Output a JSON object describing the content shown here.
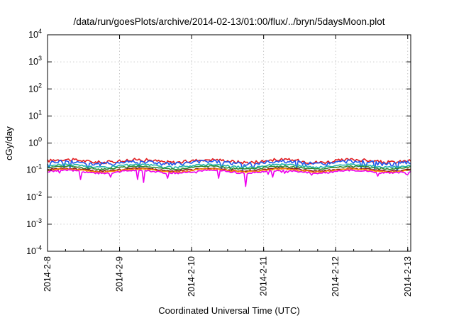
{
  "chart_data": {
    "type": "line",
    "title": "/data/run/goesPlots/archive/2014-02-13/01:00/flux/../bryn/5daysMoon.plot",
    "xlabel": "Coordinated Universal Time (UTC)",
    "ylabel": "cGy/day",
    "y_scale": "log",
    "ylim": [
      0.0001,
      10000
    ],
    "y_ticks": [
      {
        "base": "10",
        "exp": "-4",
        "value": 0.0001
      },
      {
        "base": "10",
        "exp": "-3",
        "value": 0.001
      },
      {
        "base": "10",
        "exp": "-2",
        "value": 0.01
      },
      {
        "base": "10",
        "exp": "-1",
        "value": 0.1
      },
      {
        "base": "10",
        "exp": "0",
        "value": 1
      },
      {
        "base": "10",
        "exp": "1",
        "value": 10
      },
      {
        "base": "10",
        "exp": "2",
        "value": 100
      },
      {
        "base": "10",
        "exp": "3",
        "value": 1000
      },
      {
        "base": "10",
        "exp": "4",
        "value": 10000
      }
    ],
    "x_ticks": [
      "2014-2-8",
      "2014-2-9",
      "2014-2-10",
      "2014-2-11",
      "2014-2-12",
      "2014-2-13"
    ],
    "xlim": [
      "2014-02-08T00:00",
      "2014-02-13T01:00"
    ],
    "grid": true,
    "series": [
      {
        "color": "#e41a1c",
        "base": 0.22,
        "amp": 0.055,
        "spike_depth": 0.1,
        "dips": []
      },
      {
        "color": "#2255ee",
        "base": 0.19,
        "amp": 0.06,
        "spike_depth": 0.42,
        "dips": []
      },
      {
        "color": "#20b2aa",
        "base": 0.145,
        "amp": 0.02,
        "spike_depth": 0.12,
        "dips": []
      },
      {
        "color": "#2e8b2e",
        "base": 0.125,
        "amp": 0.012,
        "spike_depth": 0.08,
        "dips": []
      },
      {
        "color": "#8b1a1a",
        "base": 0.105,
        "amp": 0.01,
        "spike_depth": 0.08,
        "dips": []
      },
      {
        "color": "#ff8c00",
        "base": 0.098,
        "amp": 0.01,
        "spike_depth": 0.08,
        "dips": []
      },
      {
        "color": "#ee00ee",
        "base": 0.088,
        "amp": 0.012,
        "spike_depth": 0.2,
        "dips": [
          {
            "x": "2014-02-08T11:00",
            "value": 0.045
          },
          {
            "x": "2014-02-08T21:00",
            "value": 0.055
          },
          {
            "x": "2014-02-09T06:00",
            "value": 0.045
          },
          {
            "x": "2014-02-09T08:00",
            "value": 0.035
          },
          {
            "x": "2014-02-09T16:00",
            "value": 0.05
          },
          {
            "x": "2014-02-10T09:00",
            "value": 0.05
          },
          {
            "x": "2014-02-10T18:00",
            "value": 0.025
          },
          {
            "x": "2014-02-11T03:00",
            "value": 0.055
          },
          {
            "x": "2014-02-12T14:00",
            "value": 0.06
          }
        ]
      }
    ]
  }
}
